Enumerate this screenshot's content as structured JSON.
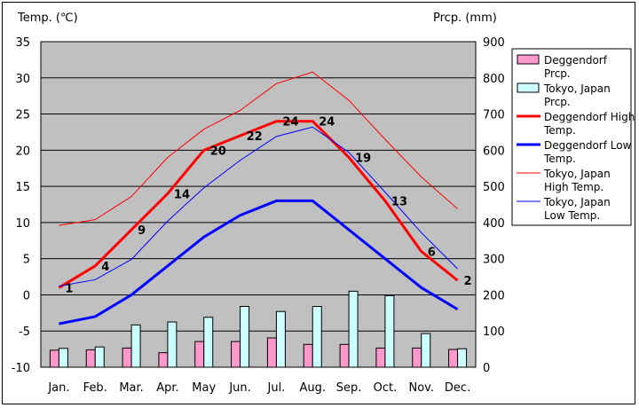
{
  "chart_data": {
    "type": "bar+line",
    "y1label": "Temp. (℃)",
    "y2label": "Prcp. (mm)",
    "y1lim": [
      -10,
      35
    ],
    "y2lim": [
      0,
      900
    ],
    "y1ticks": [
      "35",
      "30",
      "25",
      "20",
      "15",
      "10",
      "5",
      "0",
      "-5",
      "-10"
    ],
    "y2ticks": [
      "900",
      "800",
      "700",
      "600",
      "500",
      "400",
      "300",
      "200",
      "100",
      "0"
    ],
    "categories": [
      "Jan.",
      "Feb.",
      "Mar.",
      "Apr.",
      "May",
      "Jun.",
      "Jul.",
      "Aug.",
      "Sep.",
      "Oct.",
      "Nov.",
      "Dec."
    ],
    "grid": true,
    "legend_position": "right",
    "series": [
      {
        "name": "Deggendorf Prcp.",
        "kind": "bar",
        "axis": "y2",
        "color": "#ff99cc",
        "values": [
          47,
          48,
          53,
          40,
          71,
          71,
          81,
          63,
          63,
          53,
          53,
          49
        ]
      },
      {
        "name": "Tokyo, Japan Prcp.",
        "kind": "bar",
        "axis": "y2",
        "color": "#ccffff",
        "values": [
          52,
          56,
          117,
          125,
          138,
          168,
          154,
          168,
          210,
          198,
          93,
          51
        ]
      },
      {
        "name": "Deggendorf High Temp.",
        "kind": "line",
        "axis": "y1",
        "color": "#ff0000",
        "width": 3,
        "values": [
          1,
          4,
          9,
          14,
          20,
          22,
          24,
          24,
          19,
          13,
          6,
          2
        ],
        "labels": [
          "1",
          "4",
          "9",
          "14",
          "20",
          "22",
          "24",
          "24",
          "19",
          "13",
          "6",
          "2"
        ]
      },
      {
        "name": "Deggendorf Low Temp.",
        "kind": "line",
        "axis": "y1",
        "color": "#0000ff",
        "width": 3,
        "values": [
          -4,
          -3,
          0,
          4,
          8,
          11,
          13,
          13,
          9,
          5,
          1,
          -2
        ]
      },
      {
        "name": "Tokyo, Japan High Temp.",
        "kind": "line",
        "axis": "y1",
        "color": "#ff0000",
        "width": 1,
        "values": [
          9.6,
          10.4,
          13.6,
          19,
          22.9,
          25.5,
          29.2,
          30.8,
          26.9,
          21.5,
          16.3,
          11.9
        ]
      },
      {
        "name": "Tokyo, Japan Low Temp.",
        "kind": "line",
        "axis": "y1",
        "color": "#0000ff",
        "width": 1,
        "values": [
          1.2,
          2.1,
          4.9,
          10.2,
          14.8,
          18.6,
          21.9,
          23.2,
          19.7,
          14.2,
          8.6,
          3.6
        ]
      }
    ],
    "legend": [
      {
        "label": [
          "Deggendorf",
          "Prcp."
        ],
        "kind": "bar",
        "color": "#ff99cc"
      },
      {
        "label": [
          "Tokyo, Japan",
          "Prcp."
        ],
        "kind": "bar",
        "color": "#ccffff"
      },
      {
        "label": [
          "Deggendorf High",
          "Temp."
        ],
        "kind": "line",
        "color": "#ff0000",
        "width": 3
      },
      {
        "label": [
          "Deggendorf Low",
          "Temp."
        ],
        "kind": "line",
        "color": "#0000ff",
        "width": 3
      },
      {
        "label": [
          "Tokyo, Japan",
          "High Temp."
        ],
        "kind": "line",
        "color": "#ff0000",
        "width": 1
      },
      {
        "label": [
          "Tokyo, Japan",
          "Low Temp."
        ],
        "kind": "line",
        "color": "#0000ff",
        "width": 1
      }
    ]
  }
}
